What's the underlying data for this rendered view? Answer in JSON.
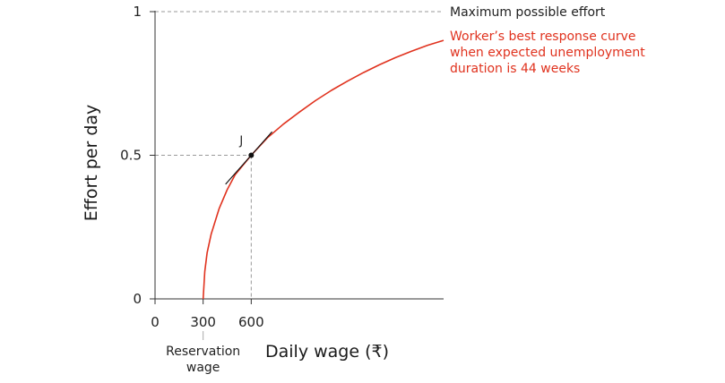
{
  "chart_data": {
    "type": "line",
    "xlabel": "Daily wage (₹)",
    "ylabel": "Effort per day",
    "xlim": [
      0,
      1800
    ],
    "ylim": [
      0,
      1
    ],
    "x_ticks": [
      {
        "value": 0,
        "label": "0"
      },
      {
        "value": 300,
        "label": "300"
      },
      {
        "value": 600,
        "label": "600"
      }
    ],
    "y_ticks": [
      {
        "value": 0,
        "label": "0"
      },
      {
        "value": 0.5,
        "label": "0.5"
      },
      {
        "value": 1,
        "label": "1"
      }
    ],
    "reservation_wage": {
      "value": 300,
      "label_lines": [
        "Reservation",
        "wage"
      ]
    },
    "max_effort_line": {
      "value": 1,
      "label": "Maximum possible effort"
    },
    "series": [
      {
        "label_lines": [
          "Worker’s best response curve",
          "when expected unemployment",
          "duration is 44 weeks"
        ],
        "color": "#e0321e",
        "x": [
          300,
          310,
          325,
          350,
          400,
          450,
          500,
          600,
          700,
          800,
          900,
          1000,
          1100,
          1200,
          1300,
          1400,
          1500,
          1600,
          1700,
          1800
        ],
        "y": [
          0,
          0.095,
          0.16,
          0.225,
          0.315,
          0.38,
          0.432,
          0.5,
          0.56,
          0.608,
          0.65,
          0.69,
          0.726,
          0.758,
          0.788,
          0.815,
          0.84,
          0.862,
          0.883,
          0.9
        ]
      }
    ],
    "point": {
      "name": "J",
      "x": 600,
      "y": 0.5
    },
    "tangent": {
      "through": "J",
      "slope": 0.00063,
      "x_from": 440,
      "x_to": 730
    },
    "dashed_guides": true,
    "grid": false,
    "legend": "none"
  }
}
